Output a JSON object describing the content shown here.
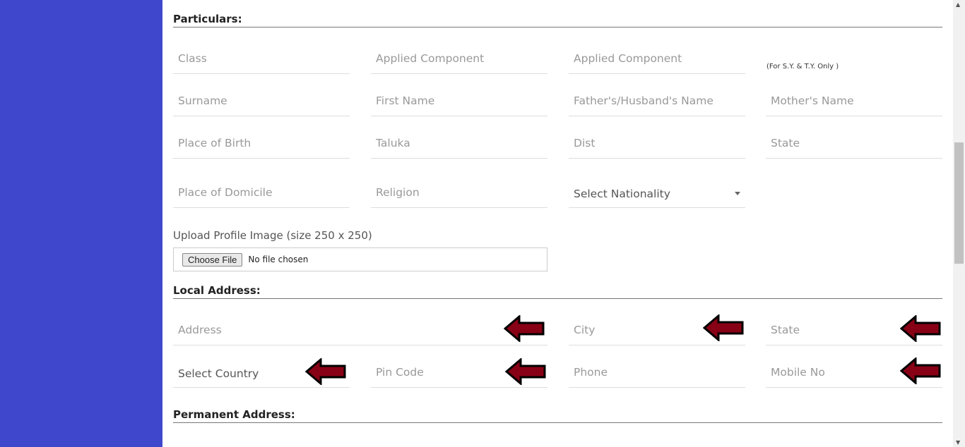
{
  "sections": {
    "particulars": "Particulars:",
    "local": "Local Address:",
    "permanent": "Permanent Address:"
  },
  "particulars": {
    "class": "Class",
    "applied1": "Applied Component",
    "applied2": "Applied Component",
    "note": "(For S.Y. & T.Y. Only )",
    "surname": "Surname",
    "first_name": "First Name",
    "father": "Father's/Husband's Name",
    "mother": "Mother's Name",
    "birth": "Place of Birth",
    "taluka": "Taluka",
    "dist": "Dist",
    "state": "State",
    "domicile": "Place of Domicile",
    "religion": "Religion",
    "nationality": "Select Nationality"
  },
  "upload": {
    "label": "Upload Profile Image (size 250 x 250)",
    "button": "Choose File",
    "status": "No file chosen"
  },
  "local": {
    "address": "Address",
    "city": "City",
    "state": "State",
    "country": "Select Country",
    "pin": "Pin Code",
    "phone": "Phone",
    "mobile": "Mobile No"
  },
  "colors": {
    "sidebar": "#3f48cc",
    "arrow": "#880015"
  },
  "icons": {
    "arrow": "left-arrow-icon"
  }
}
